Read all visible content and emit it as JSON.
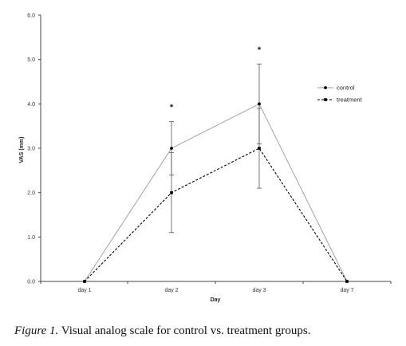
{
  "chart_data": {
    "type": "line",
    "categories": [
      "day 1",
      "day 2",
      "day 3",
      "day 7"
    ],
    "xlabel": "Day",
    "ylabel": "VAS (mm)",
    "ylim": [
      0,
      6
    ],
    "yticks": [
      "0.0",
      "1.0",
      "2.0",
      "3.0",
      "4.0",
      "5.0",
      "6.0"
    ],
    "grid": false,
    "legend_position": "top-right",
    "series": [
      {
        "name": "control",
        "style": "solid",
        "color": "#999999",
        "marker_color": "#000000",
        "values": [
          0,
          3.0,
          4.0,
          0
        ],
        "error": [
          0,
          0.6,
          0.9,
          0
        ]
      },
      {
        "name": "treatment",
        "style": "dashed",
        "color": "#000000",
        "marker_color": "#000000",
        "values": [
          0,
          2.0,
          3.0,
          0
        ],
        "error": [
          0,
          0.9,
          0.9,
          0
        ]
      }
    ],
    "annotations": [
      {
        "text": "*",
        "category": "day 2",
        "y": 3.95
      },
      {
        "text": "*",
        "category": "day 3",
        "y": 5.25
      }
    ]
  },
  "caption": {
    "label": "Figure 1.",
    "text": "  Visual analog scale for control vs. treatment groups."
  }
}
